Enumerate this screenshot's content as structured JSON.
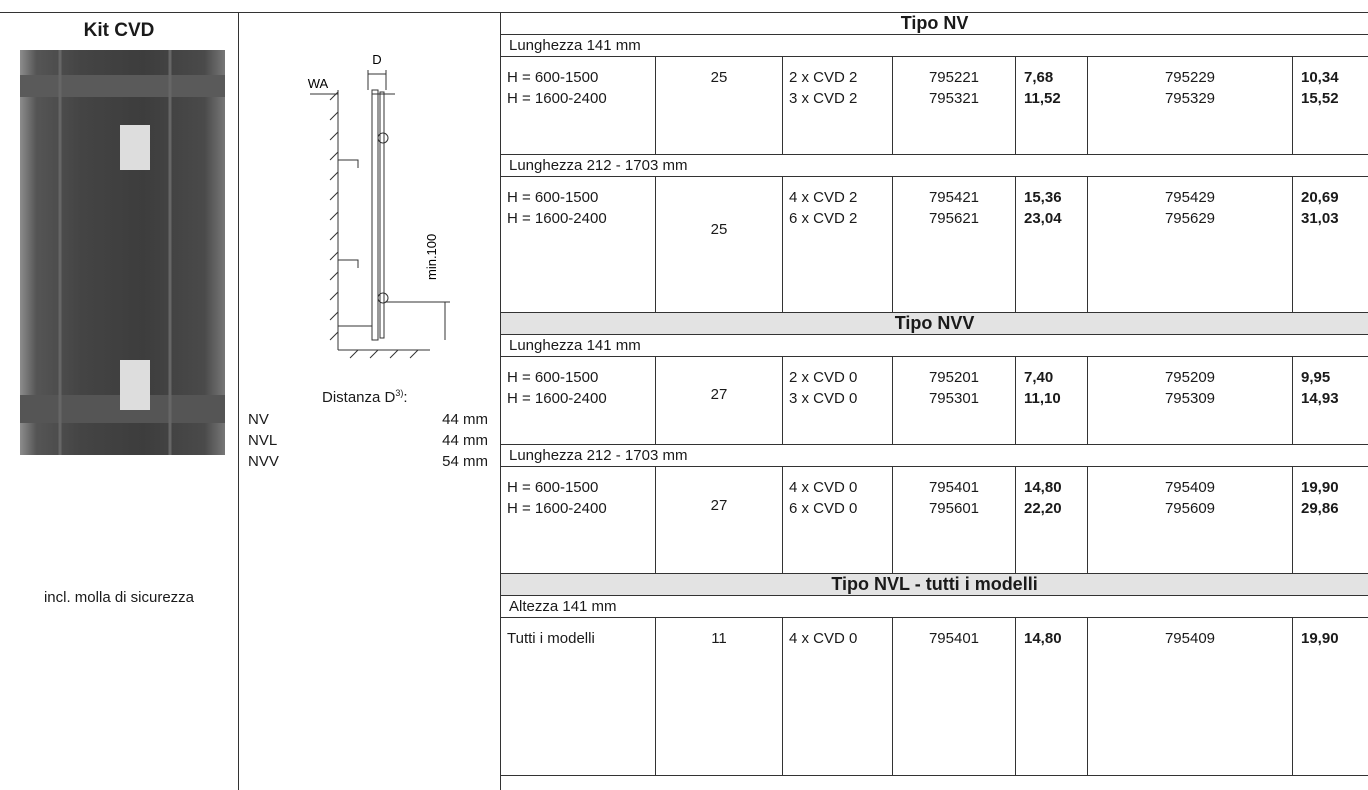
{
  "left": {
    "title": "Kit CVD",
    "caption": "incl. molla di sicurezza"
  },
  "diagram": {
    "label_d": "D",
    "label_wa": "WA",
    "label_min": "min.100"
  },
  "distance": {
    "label": "Distanza D",
    "sup": "3)",
    "suffix": ":",
    "rows": [
      [
        "NV",
        "44 mm"
      ],
      [
        "NVL",
        "44 mm"
      ],
      [
        "NVV",
        "54 mm"
      ]
    ]
  },
  "table": {
    "sections": [
      {
        "title": "Tipo NV",
        "groups": [
          {
            "header": "Lunghezza 141 mm",
            "spec": [
              "H = 600-1500",
              "H = 1600-2400"
            ],
            "num": "25",
            "kits": [
              "2 x CVD 2",
              "3 x CVD 2"
            ],
            "codes1": [
              "795221",
              "795321"
            ],
            "prices1": [
              "7,68",
              "11,52"
            ],
            "codes2": [
              "795229",
              "795329"
            ],
            "prices2": [
              "10,34",
              "15,52"
            ]
          },
          {
            "header": "Lunghezza 212 - 1703 mm",
            "spec": [
              "H = 600-1500",
              "H = 1600-2400"
            ],
            "num": "25",
            "kits": [
              "4 x CVD 2",
              "6 x CVD 2"
            ],
            "codes1": [
              "795421",
              "795621"
            ],
            "prices1": [
              "15,36",
              "23,04"
            ],
            "codes2": [
              "795429",
              "795629"
            ],
            "prices2": [
              "20,69",
              "31,03"
            ]
          }
        ]
      },
      {
        "title": "Tipo NVV",
        "groups": [
          {
            "header": "Lunghezza 141 mm",
            "spec": [
              "H = 600-1500",
              "H = 1600-2400"
            ],
            "num": "27",
            "kits": [
              "2 x CVD 0",
              "3 x CVD 0"
            ],
            "codes1": [
              "795201",
              "795301"
            ],
            "prices1": [
              "7,40",
              "11,10"
            ],
            "codes2": [
              "795209",
              "795309"
            ],
            "prices2": [
              "9,95",
              "14,93"
            ]
          },
          {
            "header": "Lunghezza 212 - 1703 mm",
            "spec": [
              "H = 600-1500",
              "H = 1600-2400"
            ],
            "num": "27",
            "kits": [
              "4 x CVD 0",
              "6 x CVD 0"
            ],
            "codes1": [
              "795401",
              "795601"
            ],
            "prices1": [
              "14,80",
              "22,20"
            ],
            "codes2": [
              "795409",
              "795609"
            ],
            "prices2": [
              "19,90",
              "29,86"
            ]
          }
        ]
      },
      {
        "title": "Tipo NVL - tutti i modelli",
        "groups": [
          {
            "header": "Altezza 141 mm",
            "spec": [
              "Tutti i modelli"
            ],
            "num": "11",
            "kits": [
              "4 x CVD 0"
            ],
            "codes1": [
              "795401"
            ],
            "prices1": [
              "14,80"
            ],
            "codes2": [
              "795409"
            ],
            "prices2": [
              "19,90"
            ]
          }
        ]
      }
    ]
  }
}
